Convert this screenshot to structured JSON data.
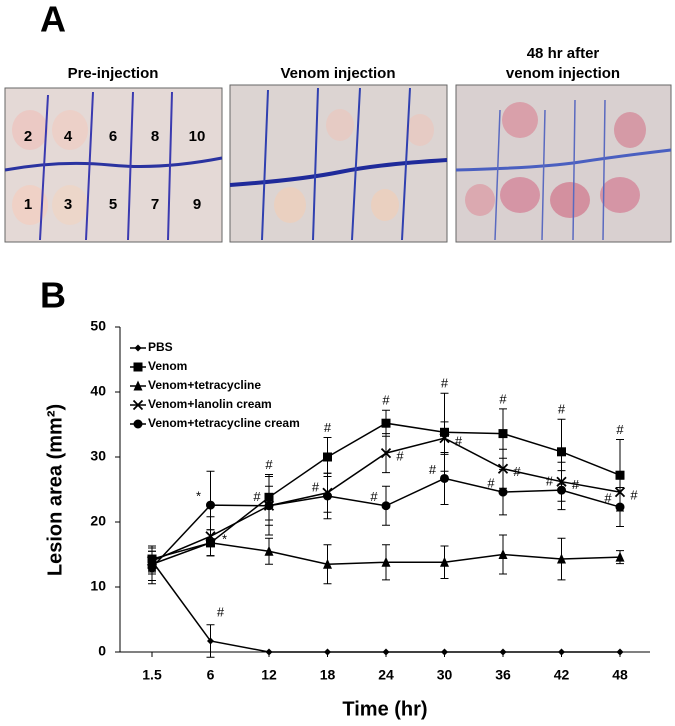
{
  "panel_a": {
    "letter": "A",
    "photos": [
      {
        "title_lines": [
          "Pre-injection"
        ],
        "grid_labels": [
          "2",
          "4",
          "6",
          "8",
          "10",
          "1",
          "3",
          "5",
          "7",
          "9"
        ]
      },
      {
        "title_lines": [
          "Venom injection"
        ]
      },
      {
        "title_lines": [
          "48 hr after",
          "venom injection"
        ]
      }
    ]
  },
  "chart_data": {
    "type": "line",
    "panel_letter": "B",
    "x_label": "Time (hr)",
    "y_label": "Lesion area (mm²)",
    "categories": [
      "1.5",
      "6",
      "12",
      "18",
      "24",
      "30",
      "36",
      "42",
      "48"
    ],
    "ylim": [
      0,
      50
    ],
    "yticks": [
      0,
      10,
      20,
      30,
      40,
      50
    ],
    "grid": false,
    "legend": "upper left",
    "series": [
      {
        "name": "PBS",
        "color": "#000000",
        "marker": "diamond",
        "values": [
          14,
          1.7,
          0,
          0,
          0,
          0,
          0,
          0,
          0
        ],
        "errors": [
          1.5,
          2.5,
          0,
          0,
          0,
          0,
          0,
          0,
          0
        ],
        "annotations": [
          null,
          "#",
          null,
          null,
          null,
          null,
          null,
          null,
          null
        ]
      },
      {
        "name": "Venom",
        "color": "#000000",
        "marker": "square",
        "values": [
          14.3,
          16.8,
          23.8,
          30.0,
          35.2,
          33.8,
          33.6,
          30.8,
          27.2
        ],
        "errors": [
          2,
          2,
          3.5,
          3,
          2,
          6,
          3.8,
          5,
          5.5
        ],
        "annotations": [
          null,
          null,
          "#",
          "#",
          "#",
          "#",
          "#",
          "#",
          "#"
        ]
      },
      {
        "name": "Venom+tetracycline",
        "color": "#000000",
        "marker": "triangle",
        "values": [
          13.5,
          16.8,
          15.5,
          13.5,
          13.8,
          13.8,
          15.0,
          14.3,
          14.6
        ],
        "errors": [
          2.5,
          2,
          2,
          3,
          2.7,
          2.5,
          3,
          3.2,
          1
        ]
      },
      {
        "name": "Venom+lanolin cream",
        "color": "#000000",
        "marker": "x",
        "values": [
          14,
          17.8,
          22.5,
          24.5,
          30.6,
          32.9,
          28.2,
          26.2,
          24.6
        ],
        "errors": [
          2,
          3,
          3,
          3,
          3,
          2.5,
          3,
          3,
          2
        ],
        "annotations": [
          null,
          "*",
          null,
          null,
          "#",
          "#",
          "#",
          "#",
          "#"
        ]
      },
      {
        "name": "Venom+tetracycline cream",
        "color": "#000000",
        "marker": "circle",
        "values": [
          13,
          22.6,
          22.5,
          24.0,
          22.5,
          26.7,
          24.6,
          24.9,
          22.3
        ],
        "errors": [
          2.5,
          5.2,
          4.5,
          3.5,
          3,
          4,
          3.5,
          3,
          3
        ],
        "annotations": [
          null,
          "*",
          "#",
          "#",
          "#",
          "#",
          "#",
          "#",
          "#"
        ]
      }
    ]
  }
}
